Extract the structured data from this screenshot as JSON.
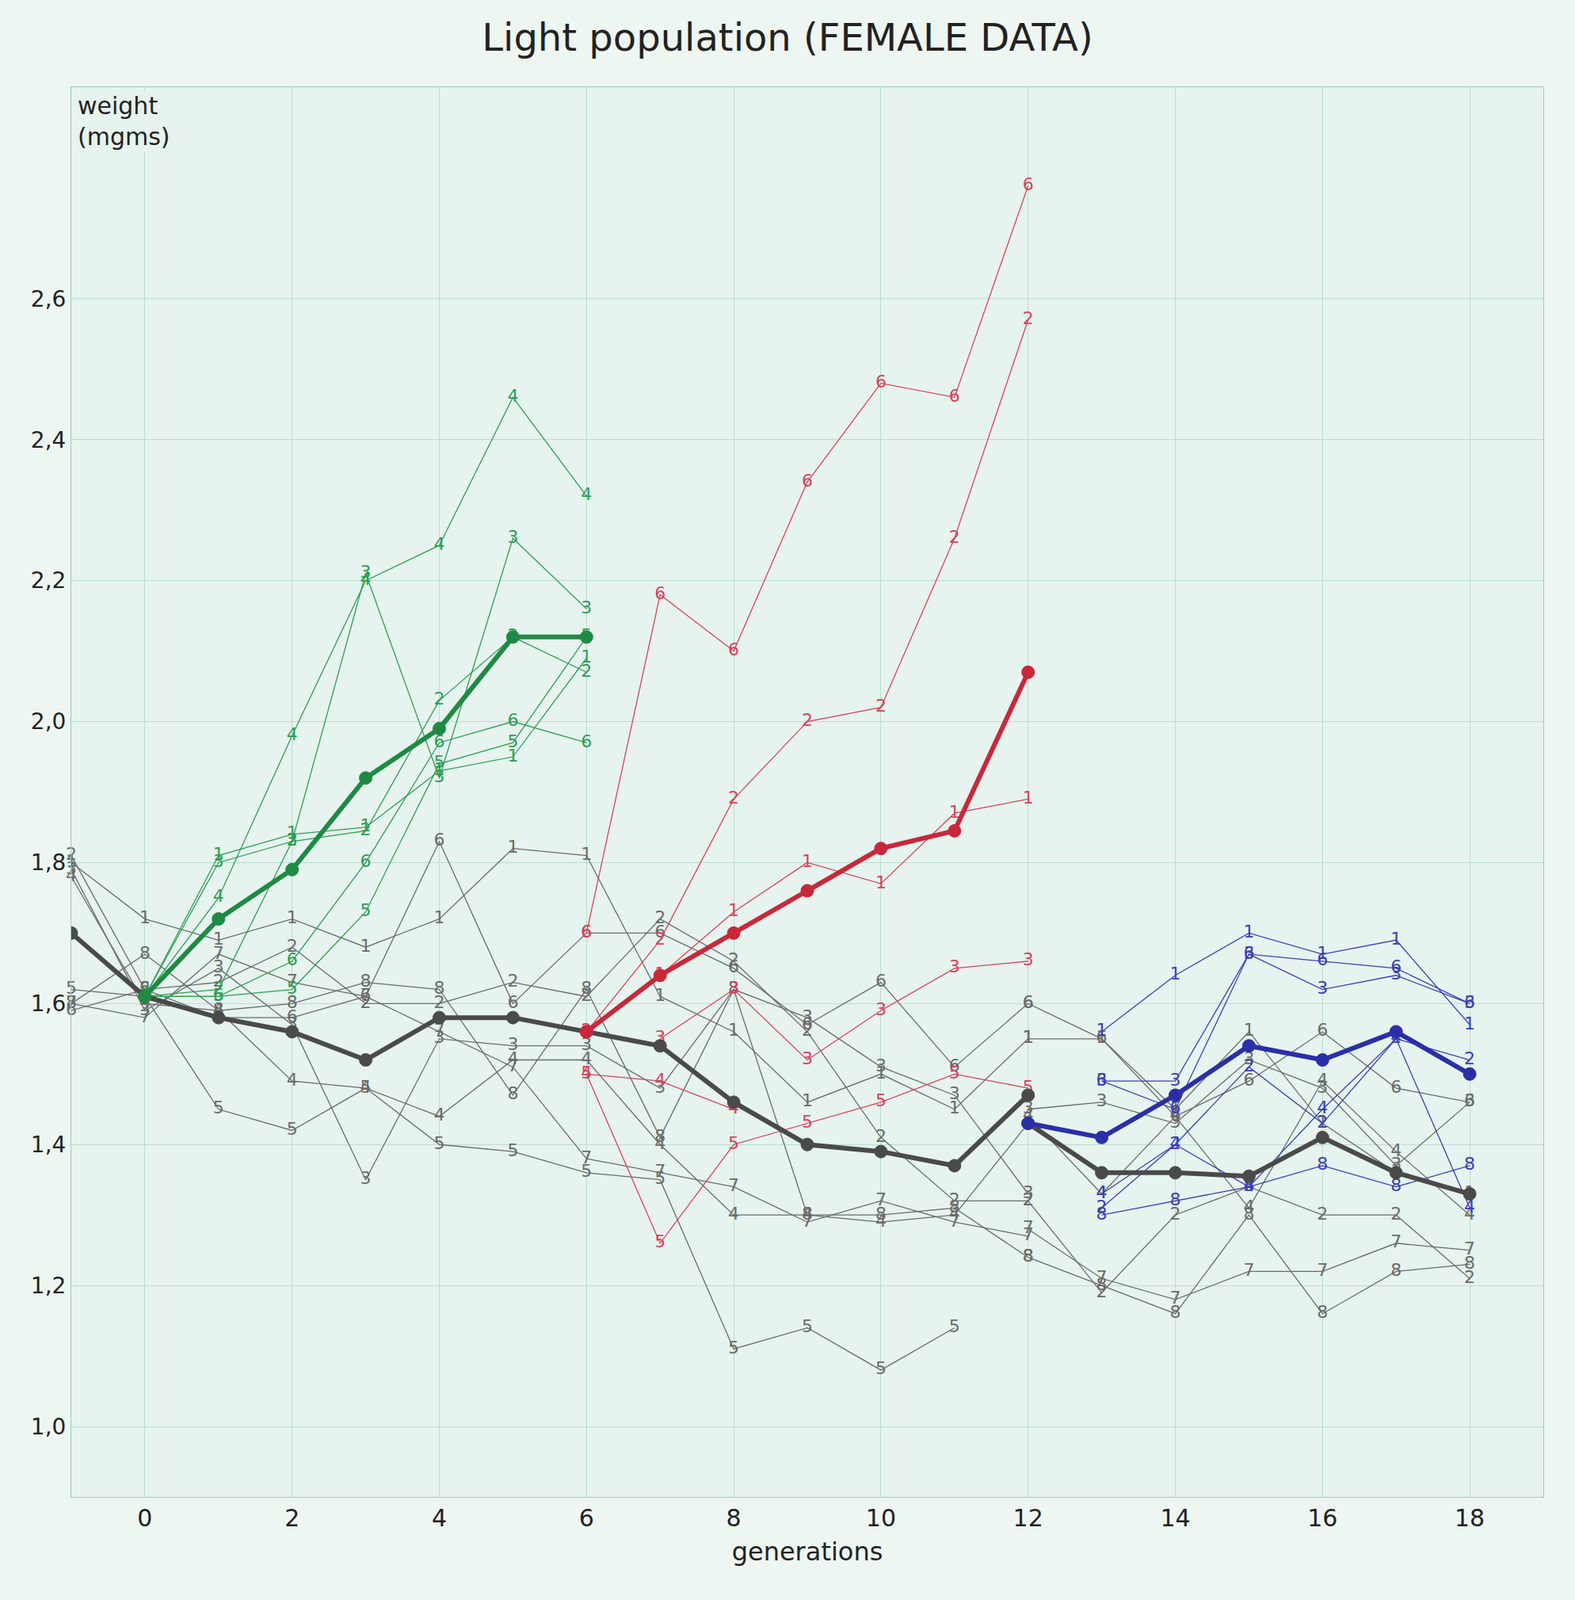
{
  "chart_data": {
    "type": "line",
    "title": "Light population (FEMALE DATA)",
    "x_label": "generations",
    "y_label": "weight (mgms)",
    "xlim": [
      -1,
      19
    ],
    "xticks": [
      0,
      2,
      4,
      6,
      8,
      10,
      12,
      14,
      16,
      18
    ],
    "ylim": [
      0.9,
      2.9
    ],
    "yticks": [
      {
        "value": 1.0,
        "label": "1,0"
      },
      {
        "value": 1.2,
        "label": "1,2"
      },
      {
        "value": 1.4,
        "label": "1,4"
      },
      {
        "value": 1.6,
        "label": "1,6"
      },
      {
        "value": 1.8,
        "label": "1,8"
      },
      {
        "value": 2.0,
        "label": "2,0"
      },
      {
        "value": 2.2,
        "label": "2,2"
      },
      {
        "value": 2.4,
        "label": "2,4"
      },
      {
        "value": 2.6,
        "label": "2,6"
      }
    ],
    "grid": true,
    "series": [
      {
        "label": "1",
        "color": "#6b6b6b",
        "marker": "number",
        "line_style": "thin",
        "x": [
          -1,
          0,
          1,
          2,
          3,
          4,
          5,
          6,
          7,
          8,
          9,
          10,
          11,
          12
        ],
        "values": [
          1.8,
          1.72,
          1.69,
          1.72,
          1.68,
          1.72,
          1.82,
          1.81,
          1.61,
          1.56,
          1.46,
          1.5,
          1.45,
          1.55
        ]
      },
      {
        "label": "2",
        "color": "#6b6b6b",
        "marker": "number",
        "line_style": "thin",
        "x": [
          -1,
          0,
          1,
          2,
          3,
          4,
          5,
          6,
          7,
          8,
          9,
          10,
          11,
          12
        ],
        "values": [
          1.81,
          1.62,
          1.63,
          1.68,
          1.6,
          1.6,
          1.63,
          1.61,
          1.72,
          1.66,
          1.56,
          1.41,
          1.32,
          1.32
        ]
      },
      {
        "label": "3",
        "color": "#6b6b6b",
        "marker": "number",
        "line_style": "thin",
        "x": [
          -1,
          0,
          1,
          2,
          3,
          4,
          5,
          6,
          7,
          8,
          9,
          10,
          11,
          12
        ],
        "values": [
          1.79,
          1.59,
          1.65,
          1.57,
          1.35,
          1.55,
          1.54,
          1.54,
          1.48,
          1.62,
          1.58,
          1.51,
          1.47,
          1.33
        ]
      },
      {
        "label": "4",
        "color": "#6b6b6b",
        "marker": "number",
        "line_style": "thin",
        "x": [
          -1,
          0,
          1,
          2,
          3,
          4,
          5,
          6,
          7,
          8,
          9,
          10,
          11,
          12
        ],
        "values": [
          1.78,
          1.6,
          1.59,
          1.49,
          1.48,
          1.44,
          1.52,
          1.52,
          1.4,
          1.3,
          1.3,
          1.29,
          1.3,
          1.43
        ]
      },
      {
        "label": "5",
        "color": "#6b6b6b",
        "marker": "number",
        "line_style": "thin",
        "x": [
          -1,
          0,
          1,
          2,
          3,
          4,
          5,
          6,
          7,
          8,
          9,
          10,
          11
        ],
        "values": [
          1.62,
          1.61,
          1.45,
          1.42,
          1.48,
          1.4,
          1.39,
          1.36,
          1.35,
          1.11,
          1.14,
          1.08,
          1.14
        ]
      },
      {
        "label": "6",
        "color": "#6b6b6b",
        "marker": "number",
        "line_style": "thin",
        "x": [
          -1,
          0,
          1,
          2,
          3,
          4,
          5,
          6,
          7,
          8,
          9,
          10,
          11,
          12
        ],
        "values": [
          1.59,
          1.62,
          1.58,
          1.58,
          1.61,
          1.83,
          1.6,
          1.7,
          1.7,
          1.65,
          1.57,
          1.63,
          1.51,
          1.6
        ]
      },
      {
        "label": "7",
        "color": "#6b6b6b",
        "marker": "number",
        "line_style": "thin",
        "x": [
          -1,
          0,
          1,
          2,
          3,
          4,
          5,
          6,
          7,
          8,
          9,
          10,
          11,
          12
        ],
        "values": [
          1.6,
          1.58,
          1.67,
          1.63,
          1.61,
          1.56,
          1.51,
          1.38,
          1.36,
          1.34,
          1.29,
          1.32,
          1.29,
          1.27
        ]
      },
      {
        "label": "8",
        "color": "#6b6b6b",
        "marker": "number",
        "line_style": "thin",
        "x": [
          -1,
          0,
          1,
          2,
          3,
          4,
          5,
          6,
          7,
          8,
          9,
          10,
          11,
          12
        ],
        "values": [
          1.6,
          1.67,
          1.59,
          1.6,
          1.63,
          1.62,
          1.47,
          1.62,
          1.41,
          1.62,
          1.3,
          1.3,
          1.31,
          1.24
        ]
      },
      {
        "label": "1",
        "color": "#6b6b6b",
        "marker": "number",
        "line_style": "thin",
        "x": [
          12,
          13,
          14,
          15,
          16,
          17,
          18
        ],
        "values": [
          1.55,
          1.55,
          1.45,
          1.56,
          1.43,
          1.36,
          1.33
        ]
      },
      {
        "label": "2",
        "color": "#6b6b6b",
        "marker": "number",
        "line_style": "thin",
        "x": [
          12,
          13,
          14,
          15,
          16,
          17,
          18
        ],
        "values": [
          1.32,
          1.19,
          1.3,
          1.34,
          1.3,
          1.3,
          1.21
        ]
      },
      {
        "label": "3",
        "color": "#6b6b6b",
        "marker": "number",
        "line_style": "thin",
        "x": [
          12,
          13,
          14,
          15,
          16,
          17,
          18
        ],
        "values": [
          1.45,
          1.46,
          1.43,
          1.52,
          1.48,
          1.37,
          1.46
        ]
      },
      {
        "label": "4",
        "color": "#6b6b6b",
        "marker": "number",
        "line_style": "thin",
        "x": [
          12,
          13,
          14,
          15,
          16,
          17,
          18
        ],
        "values": [
          1.44,
          1.33,
          1.44,
          1.31,
          1.49,
          1.39,
          1.3
        ]
      },
      {
        "label": "6",
        "color": "#6b6b6b",
        "marker": "number",
        "line_style": "thin",
        "x": [
          12,
          13,
          14,
          15,
          16,
          17,
          18
        ],
        "values": [
          1.6,
          1.55,
          1.44,
          1.49,
          1.56,
          1.48,
          1.46
        ]
      },
      {
        "label": "7",
        "color": "#6b6b6b",
        "marker": "number",
        "line_style": "thin",
        "x": [
          12,
          13,
          14,
          15,
          16,
          17,
          18
        ],
        "values": [
          1.28,
          1.21,
          1.18,
          1.22,
          1.22,
          1.26,
          1.25
        ]
      },
      {
        "label": "8",
        "color": "#6b6b6b",
        "marker": "number",
        "line_style": "thin",
        "x": [
          12,
          13,
          14,
          15,
          16,
          17,
          18
        ],
        "values": [
          1.24,
          1.2,
          1.16,
          1.3,
          1.16,
          1.22,
          1.23
        ]
      },
      {
        "label": "1",
        "color": "#2f9e55",
        "marker": "number",
        "line_style": "thin",
        "x": [
          0,
          1,
          2,
          3,
          4,
          5,
          6
        ],
        "values": [
          1.61,
          1.81,
          1.84,
          1.85,
          1.93,
          1.95,
          2.09
        ]
      },
      {
        "label": "2",
        "color": "#2f9e55",
        "marker": "number",
        "line_style": "thin",
        "x": [
          0,
          1,
          2,
          3,
          4,
          5,
          6
        ],
        "values": [
          1.61,
          1.62,
          1.83,
          1.845,
          2.03,
          2.12,
          2.07
        ]
      },
      {
        "label": "3",
        "color": "#2f9e55",
        "marker": "number",
        "line_style": "thin",
        "x": [
          0,
          1,
          2,
          3,
          4,
          5,
          6
        ],
        "values": [
          1.61,
          1.8,
          1.83,
          2.21,
          1.92,
          2.26,
          2.16
        ]
      },
      {
        "label": "4",
        "color": "#2f9e55",
        "marker": "number",
        "line_style": "thin",
        "x": [
          0,
          1,
          2,
          3,
          4,
          5,
          6
        ],
        "values": [
          1.61,
          1.75,
          1.98,
          2.2,
          2.25,
          2.46,
          2.32
        ]
      },
      {
        "label": "5",
        "color": "#2f9e55",
        "marker": "number",
        "line_style": "thin",
        "x": [
          0,
          1,
          2,
          3,
          4,
          5,
          6
        ],
        "values": [
          1.61,
          1.61,
          1.62,
          1.73,
          1.94,
          1.97,
          2.12
        ]
      },
      {
        "label": "6",
        "color": "#2f9e55",
        "marker": "number",
        "line_style": "thin",
        "x": [
          0,
          1,
          2,
          3,
          4,
          5,
          6
        ],
        "values": [
          1.61,
          1.61,
          1.66,
          1.8,
          1.97,
          2.0,
          1.97
        ]
      },
      {
        "label": "6",
        "color": "#d9435a",
        "marker": "number",
        "line_style": "thin",
        "x": [
          6,
          7,
          8,
          9,
          10,
          11,
          12
        ],
        "values": [
          1.7,
          2.18,
          2.1,
          2.34,
          2.48,
          2.46,
          2.76
        ]
      },
      {
        "label": "2",
        "color": "#d9435a",
        "marker": "number",
        "line_style": "thin",
        "x": [
          6,
          7,
          8,
          9,
          10,
          11,
          12
        ],
        "values": [
          1.56,
          1.69,
          1.89,
          2.0,
          2.02,
          2.26,
          2.57
        ]
      },
      {
        "label": "1",
        "color": "#d9435a",
        "marker": "number",
        "line_style": "thin",
        "x": [
          7,
          8,
          9,
          10,
          11,
          12
        ],
        "values": [
          1.64,
          1.73,
          1.8,
          1.77,
          1.87,
          1.89
        ]
      },
      {
        "label": "3",
        "color": "#d9435a",
        "marker": "number",
        "line_style": "thin",
        "x": [
          7,
          8,
          9,
          10,
          11,
          12
        ],
        "values": [
          1.55,
          1.62,
          1.52,
          1.59,
          1.65,
          1.66
        ]
      },
      {
        "label": "4",
        "color": "#d9435a",
        "marker": "number",
        "line_style": "thin",
        "x": [
          6,
          7,
          8
        ],
        "values": [
          1.5,
          1.49,
          1.45
        ]
      },
      {
        "label": "5",
        "color": "#d9435a",
        "marker": "number",
        "line_style": "thin",
        "x": [
          6,
          7,
          8,
          9,
          10,
          11,
          12
        ],
        "values": [
          1.5,
          1.26,
          1.4,
          1.43,
          1.46,
          1.5,
          1.48
        ]
      },
      {
        "label": "1",
        "color": "#3b40b5",
        "marker": "number",
        "line_style": "thin",
        "x": [
          13,
          14,
          15,
          16,
          17,
          18
        ],
        "values": [
          1.56,
          1.64,
          1.7,
          1.67,
          1.69,
          1.57
        ]
      },
      {
        "label": "3",
        "color": "#3b40b5",
        "marker": "number",
        "line_style": "thin",
        "x": [
          13,
          14,
          15,
          16,
          17,
          18
        ],
        "values": [
          1.49,
          1.49,
          1.67,
          1.62,
          1.64,
          1.6
        ]
      },
      {
        "label": "6",
        "color": "#3b40b5",
        "marker": "number",
        "line_style": "thin",
        "x": [
          13,
          14,
          15,
          16,
          17,
          18
        ],
        "values": [
          1.49,
          1.45,
          1.67,
          1.66,
          1.65,
          1.6
        ]
      },
      {
        "label": "2",
        "color": "#3b40b5",
        "marker": "number",
        "line_style": "thin",
        "x": [
          13,
          14,
          15,
          16,
          17,
          18
        ],
        "values": [
          1.31,
          1.4,
          1.51,
          1.43,
          1.55,
          1.52
        ]
      },
      {
        "label": "4",
        "color": "#3b40b5",
        "marker": "number",
        "line_style": "thin",
        "x": [
          13,
          14,
          15,
          16,
          17,
          18
        ],
        "values": [
          1.33,
          1.4,
          1.34,
          1.45,
          1.55,
          1.31
        ]
      },
      {
        "label": "8",
        "color": "#3b40b5",
        "marker": "number",
        "line_style": "thin",
        "x": [
          13,
          14,
          15,
          16,
          17,
          18
        ],
        "values": [
          1.3,
          1.32,
          1.34,
          1.37,
          1.34,
          1.37
        ]
      },
      {
        "color": "#4a4a4a",
        "marker": "circle",
        "line_style": "thick",
        "x": [
          -1,
          0,
          1,
          2,
          3,
          4,
          5,
          6,
          7,
          8,
          9,
          10,
          11,
          12
        ],
        "values": [
          1.7,
          1.61,
          1.58,
          1.56,
          1.52,
          1.58,
          1.58,
          1.56,
          1.54,
          1.46,
          1.4,
          1.39,
          1.37,
          1.47
        ]
      },
      {
        "color": "#4a4a4a",
        "marker": "circle",
        "line_style": "thick",
        "x": [
          12,
          13,
          14,
          15,
          16,
          17,
          18
        ],
        "values": [
          1.43,
          1.36,
          1.36,
          1.355,
          1.41,
          1.36,
          1.33
        ]
      },
      {
        "color": "#1f8a44",
        "marker": "circle",
        "line_style": "thick",
        "x": [
          0,
          1,
          2,
          3,
          4,
          5,
          6
        ],
        "values": [
          1.61,
          1.72,
          1.79,
          1.92,
          1.99,
          2.12,
          2.12
        ]
      },
      {
        "color": "#c8283a",
        "marker": "circle",
        "line_style": "thick",
        "x": [
          6,
          7,
          8,
          9,
          10,
          11,
          12
        ],
        "values": [
          1.56,
          1.64,
          1.7,
          1.76,
          1.82,
          1.845,
          2.07
        ]
      },
      {
        "color": "#2a2fa8",
        "marker": "circle",
        "line_style": "thick",
        "x": [
          12,
          13,
          14,
          15,
          16,
          17,
          18
        ],
        "values": [
          1.43,
          1.41,
          1.47,
          1.54,
          1.52,
          1.56,
          1.5
        ]
      }
    ]
  }
}
